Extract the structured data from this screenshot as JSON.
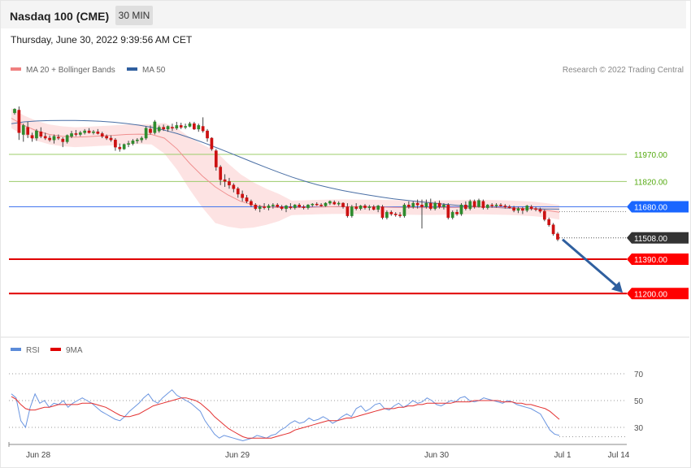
{
  "header": {
    "title": "Nasdaq 100 (CME)",
    "interval": "30 MIN",
    "timestamp": "Thursday, June 30, 2022 9:39:56 AM CET"
  },
  "legend": {
    "ma20": {
      "label": "MA 20 + Bollinger Bands",
      "color": "#f08080"
    },
    "ma50": {
      "label": "MA 50",
      "color": "#2f5f9f"
    },
    "credit": "Research © 2022 Trading Central"
  },
  "rsi_legend": {
    "rsi": {
      "label": "RSI",
      "color": "#5b8bd9"
    },
    "ma9": {
      "label": "9MA",
      "color": "#e00000"
    }
  },
  "chart_data": [
    {
      "type": "candlestick",
      "title": "",
      "x_tick_labels": [
        "Jun 28",
        "Jun 29",
        "Jun 30",
        "Jul 1",
        "Jul 14"
      ],
      "ylim": [
        11180,
        12320
      ],
      "levels": [
        {
          "value": 11970.0,
          "label": "11970.00",
          "color": "#66aa22",
          "style": "thin"
        },
        {
          "value": 11820.0,
          "label": "11820.00",
          "color": "#66aa22",
          "style": "thin"
        },
        {
          "value": 11680.0,
          "label": "11680.00",
          "color": "#2266ee",
          "style": "box"
        },
        {
          "value": 11508.0,
          "label": "11508.00",
          "color": "#333333",
          "style": "current"
        },
        {
          "value": 11390.0,
          "label": "11390.00",
          "color": "#e00000",
          "style": "thick"
        },
        {
          "value": 11200.0,
          "label": "11200.00",
          "color": "#e00000",
          "style": "thick"
        }
      ],
      "candles": [
        [
          12200,
          12225,
          12190,
          12220
        ],
        [
          12215,
          12235,
          12050,
          12090
        ],
        [
          12080,
          12140,
          12040,
          12130
        ],
        [
          12120,
          12150,
          12060,
          12080
        ],
        [
          12075,
          12090,
          12040,
          12060
        ],
        [
          12060,
          12110,
          12045,
          12100
        ],
        [
          12095,
          12120,
          12060,
          12070
        ],
        [
          12070,
          12090,
          12050,
          12060
        ],
        [
          12060,
          12075,
          12040,
          12050
        ],
        [
          12050,
          12080,
          12030,
          12070
        ],
        [
          12065,
          12080,
          12050,
          12060
        ],
        [
          12055,
          12065,
          12010,
          12040
        ],
        [
          12040,
          12080,
          12030,
          12075
        ],
        [
          12070,
          12100,
          12060,
          12085
        ],
        [
          12085,
          12105,
          12070,
          12080
        ],
        [
          12080,
          12100,
          12070,
          12090
        ],
        [
          12090,
          12110,
          12080,
          12100
        ],
        [
          12100,
          12115,
          12085,
          12090
        ],
        [
          12090,
          12105,
          12080,
          12095
        ],
        [
          12095,
          12110,
          12080,
          12085
        ],
        [
          12085,
          12095,
          12060,
          12070
        ],
        [
          12070,
          12080,
          12050,
          12060
        ],
        [
          12060,
          12075,
          12040,
          12050
        ],
        [
          12050,
          12060,
          11990,
          12010
        ],
        [
          12010,
          12030,
          11985,
          12000
        ],
        [
          12000,
          12030,
          11995,
          12025
        ],
        [
          12025,
          12045,
          12010,
          12030
        ],
        [
          12030,
          12055,
          12020,
          12045
        ],
        [
          12045,
          12060,
          12030,
          12050
        ],
        [
          12050,
          12070,
          12035,
          12060
        ],
        [
          12060,
          12125,
          12050,
          12115
        ],
        [
          12110,
          12130,
          12080,
          12090
        ],
        [
          12090,
          12160,
          12080,
          12150
        ],
        [
          12100,
          12130,
          12090,
          12120
        ],
        [
          12120,
          12135,
          12100,
          12110
        ],
        [
          12110,
          12130,
          12095,
          12125
        ],
        [
          12120,
          12140,
          12100,
          12115
        ],
        [
          12115,
          12150,
          12105,
          12130
        ],
        [
          12130,
          12145,
          12110,
          12120
        ],
        [
          12120,
          12140,
          12110,
          12125
        ],
        [
          12125,
          12150,
          12120,
          12140
        ],
        [
          12140,
          12150,
          12105,
          12110
        ],
        [
          12110,
          12140,
          12095,
          12130
        ],
        [
          12125,
          12175,
          12090,
          12100
        ],
        [
          12100,
          12110,
          12040,
          12060
        ],
        [
          12060,
          12065,
          11990,
          12000
        ],
        [
          11990,
          12000,
          11880,
          11900
        ],
        [
          11900,
          11910,
          11800,
          11830
        ],
        [
          11830,
          11860,
          11790,
          11820
        ],
        [
          11820,
          11840,
          11780,
          11800
        ],
        [
          11800,
          11810,
          11760,
          11780
        ],
        [
          11780,
          11790,
          11730,
          11750
        ],
        [
          11750,
          11770,
          11710,
          11730
        ],
        [
          11730,
          11745,
          11700,
          11710
        ],
        [
          11710,
          11720,
          11680,
          11690
        ],
        [
          11690,
          11700,
          11660,
          11670
        ],
        [
          11670,
          11690,
          11650,
          11680
        ],
        [
          11680,
          11700,
          11665,
          11675
        ],
        [
          11675,
          11695,
          11660,
          11685
        ],
        [
          11685,
          11700,
          11670,
          11690
        ],
        [
          11690,
          11700,
          11675,
          11680
        ],
        [
          11680,
          11690,
          11660,
          11670
        ],
        [
          11670,
          11690,
          11650,
          11685
        ],
        [
          11680,
          11700,
          11665,
          11675
        ],
        [
          11675,
          11695,
          11665,
          11690
        ],
        [
          11690,
          11700,
          11675,
          11680
        ],
        [
          11680,
          11690,
          11665,
          11675
        ],
        [
          11675,
          11695,
          11665,
          11690
        ],
        [
          11690,
          11700,
          11680,
          11695
        ],
        [
          11695,
          11705,
          11685,
          11690
        ],
        [
          11690,
          11700,
          11680,
          11685
        ],
        [
          11685,
          11705,
          11680,
          11700
        ],
        [
          11700,
          11715,
          11690,
          11710
        ],
        [
          11705,
          11715,
          11690,
          11695
        ],
        [
          11695,
          11710,
          11685,
          11700
        ],
        [
          11700,
          11705,
          11670,
          11680
        ],
        [
          11680,
          11700,
          11620,
          11630
        ],
        [
          11630,
          11690,
          11620,
          11680
        ],
        [
          11680,
          11700,
          11660,
          11670
        ],
        [
          11670,
          11690,
          11660,
          11685
        ],
        [
          11685,
          11695,
          11665,
          11675
        ],
        [
          11675,
          11690,
          11660,
          11680
        ],
        [
          11680,
          11690,
          11660,
          11665
        ],
        [
          11665,
          11690,
          11650,
          11685
        ],
        [
          11680,
          11690,
          11610,
          11620
        ],
        [
          11620,
          11660,
          11610,
          11650
        ],
        [
          11650,
          11660,
          11630,
          11640
        ],
        [
          11640,
          11650,
          11625,
          11635
        ],
        [
          11635,
          11650,
          11620,
          11630
        ],
        [
          11630,
          11700,
          11620,
          11690
        ],
        [
          11690,
          11710,
          11670,
          11680
        ],
        [
          11680,
          11710,
          11670,
          11700
        ],
        [
          11700,
          11720,
          11670,
          11690
        ],
        [
          11690,
          11720,
          11560,
          11680
        ],
        [
          11680,
          11720,
          11670,
          11700
        ],
        [
          11700,
          11725,
          11660,
          11670
        ],
        [
          11670,
          11710,
          11660,
          11700
        ],
        [
          11700,
          11715,
          11670,
          11680
        ],
        [
          11680,
          11700,
          11665,
          11690
        ],
        [
          11690,
          11700,
          11610,
          11620
        ],
        [
          11620,
          11660,
          11610,
          11650
        ],
        [
          11650,
          11665,
          11630,
          11640
        ],
        [
          11640,
          11700,
          11630,
          11690
        ],
        [
          11690,
          11710,
          11660,
          11670
        ],
        [
          11670,
          11720,
          11660,
          11710
        ],
        [
          11710,
          11720,
          11670,
          11680
        ],
        [
          11680,
          11725,
          11675,
          11715
        ],
        [
          11710,
          11720,
          11665,
          11675
        ],
        [
          11675,
          11695,
          11665,
          11690
        ],
        [
          11690,
          11700,
          11675,
          11685
        ],
        [
          11685,
          11700,
          11675,
          11690
        ],
        [
          11690,
          11700,
          11680,
          11685
        ],
        [
          11685,
          11695,
          11670,
          11680
        ],
        [
          11680,
          11690,
          11670,
          11675
        ],
        [
          11675,
          11685,
          11650,
          11660
        ],
        [
          11660,
          11680,
          11645,
          11670
        ],
        [
          11670,
          11680,
          11640,
          11660
        ],
        [
          11660,
          11690,
          11650,
          11685
        ],
        [
          11680,
          11690,
          11660,
          11670
        ],
        [
          11670,
          11680,
          11655,
          11665
        ],
        [
          11665,
          11675,
          11645,
          11655
        ],
        [
          11655,
          11665,
          11600,
          11610
        ],
        [
          11610,
          11620,
          11570,
          11580
        ],
        [
          11580,
          11590,
          11520,
          11530
        ],
        [
          11530,
          11540,
          11490,
          11500
        ]
      ],
      "series": [
        {
          "name": "MA 50",
          "values": [
            12140,
            12150,
            12155,
            12157,
            12158,
            12158,
            12156,
            12153,
            12148,
            12141,
            12132,
            12120,
            12104,
            12085,
            12062,
            12037,
            12010,
            11982,
            11954,
            11925,
            11897,
            11870,
            11845,
            11822,
            11802,
            11785,
            11770,
            11757,
            11745,
            11734,
            11724,
            11716,
            11708,
            11701,
            11694,
            11688,
            11683,
            11679,
            11676,
            11673,
            11671,
            11669,
            11668,
            11667
          ]
        },
        {
          "name": "MA 20",
          "values": [
            12170,
            12130,
            12100,
            12080,
            12070,
            12065,
            12068,
            12072,
            12075,
            12080,
            12082,
            12080,
            12060,
            12000,
            11920,
            11850,
            11790,
            11745,
            11710,
            11690,
            11680,
            11676,
            11674,
            11676,
            11678,
            11680,
            11681,
            11680,
            11679,
            11678,
            11677,
            11676,
            11675,
            11675,
            11676,
            11677,
            11678,
            11678,
            11677,
            11675,
            11672,
            11668,
            11660,
            11650
          ]
        }
      ],
      "projection": {
        "from": 11508,
        "to": 11200
      }
    },
    {
      "type": "line",
      "title": "",
      "yticks": [
        30,
        50,
        70
      ],
      "ylim": [
        18,
        80
      ],
      "series": [
        {
          "name": "RSI",
          "values": [
            55,
            52,
            35,
            30,
            45,
            55,
            48,
            50,
            45,
            48,
            47,
            50,
            45,
            48,
            50,
            52,
            50,
            48,
            45,
            42,
            40,
            38,
            36,
            35,
            38,
            42,
            45,
            48,
            52,
            55,
            50,
            48,
            52,
            55,
            58,
            54,
            52,
            50,
            48,
            45,
            42,
            35,
            30,
            25,
            22,
            24,
            23,
            22,
            21,
            20,
            21,
            22,
            24,
            23,
            22,
            24,
            25,
            28,
            30,
            33,
            35,
            33,
            34,
            37,
            35,
            36,
            38,
            36,
            33,
            35,
            38,
            40,
            38,
            44,
            46,
            42,
            44,
            47,
            48,
            44,
            43,
            46,
            48,
            45,
            47,
            50,
            48,
            49,
            52,
            50,
            47,
            46,
            48,
            50,
            49,
            52,
            53,
            50,
            49,
            50,
            52,
            51,
            50,
            49,
            48,
            50,
            49,
            47,
            46,
            45,
            44,
            42,
            40,
            34,
            28,
            25,
            24
          ]
        },
        {
          "name": "9MA",
          "values": [
            53,
            51,
            47,
            44,
            43,
            43,
            44,
            45,
            45,
            46,
            47,
            47,
            47,
            47,
            47,
            48,
            48,
            48,
            47,
            46,
            45,
            43,
            41,
            39,
            38,
            38,
            39,
            40,
            42,
            44,
            46,
            47,
            48,
            49,
            50,
            51,
            52,
            52,
            51,
            50,
            48,
            45,
            42,
            38,
            35,
            32,
            29,
            27,
            25,
            23,
            22,
            22,
            22,
            22,
            22,
            22,
            23,
            24,
            25,
            26,
            28,
            29,
            30,
            31,
            32,
            33,
            34,
            35,
            35,
            35,
            36,
            37,
            37,
            38,
            39,
            40,
            41,
            42,
            43,
            44,
            44,
            44,
            45,
            45,
            46,
            46,
            47,
            47,
            48,
            48,
            48,
            48,
            48,
            48,
            49,
            49,
            49,
            49,
            50,
            50,
            50,
            50,
            50,
            50,
            49,
            49,
            49,
            48,
            48,
            47,
            47,
            46,
            45,
            44,
            42,
            39,
            36
          ]
        }
      ]
    }
  ]
}
